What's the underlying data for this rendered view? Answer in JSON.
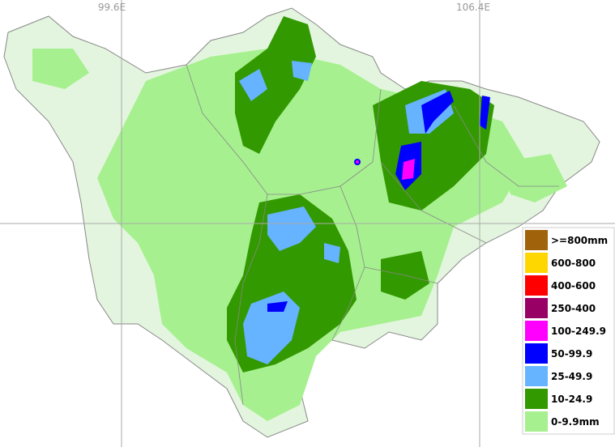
{
  "map": {
    "longitude_labels": [
      "99.6E",
      "106.4E"
    ],
    "legend": [
      {
        "label": ">=800mm",
        "color": "#a0620a"
      },
      {
        "label": "600-800",
        "color": "#ffd700"
      },
      {
        "label": "400-600",
        "color": "#ff0000"
      },
      {
        "label": "250-400",
        "color": "#990066"
      },
      {
        "label": "100-249.9",
        "color": "#ff00ff"
      },
      {
        "label": "50-99.9",
        "color": "#0000ff"
      },
      {
        "label": "25-49.9",
        "color": "#66b3ff"
      },
      {
        "label": "10-24.9",
        "color": "#339900"
      },
      {
        "label": "0-9.9mm",
        "color": "#a6f08f"
      }
    ]
  }
}
